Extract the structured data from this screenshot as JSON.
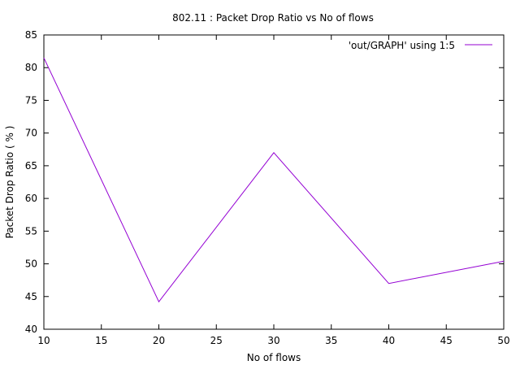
{
  "chart_data": {
    "type": "line",
    "title": "802.11 : Packet Drop Ratio vs No of flows",
    "xlabel": "No of flows",
    "ylabel": "Packet Drop Ratio ( % )",
    "xlim": [
      10,
      50
    ],
    "ylim": [
      40,
      85
    ],
    "xticks": [
      10,
      15,
      20,
      25,
      30,
      35,
      40,
      45,
      50
    ],
    "yticks": [
      40,
      45,
      50,
      55,
      60,
      65,
      70,
      75,
      80,
      85
    ],
    "grid": false,
    "legend_position": "top-right",
    "series": [
      {
        "name": "'out/GRAPH' using 1:5",
        "color": "#9400d3",
        "x": [
          10,
          20,
          30,
          40,
          50
        ],
        "y": [
          81.5,
          44.2,
          67.0,
          47.0,
          50.4
        ]
      }
    ]
  }
}
